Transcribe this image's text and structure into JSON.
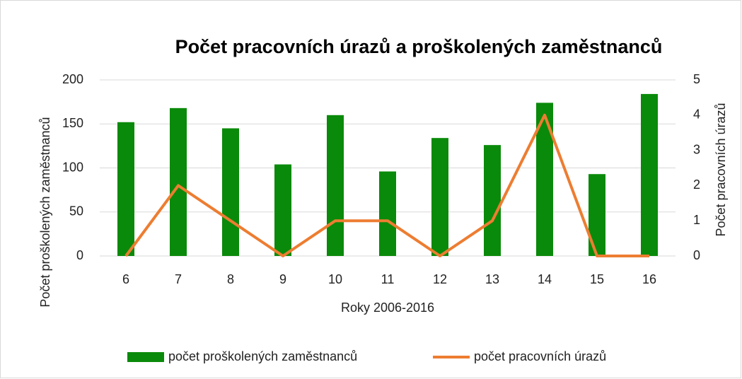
{
  "chart_data": {
    "type": "bar",
    "title": "Počet pracovních úrazů a proškolených zaměstnanců",
    "xlabel": "Roky 2006-2016",
    "ylabel": "Počet proškolených zaměstnanců",
    "y2label": "Počet pracovních úrazů",
    "categories": [
      6,
      7,
      8,
      9,
      10,
      11,
      12,
      13,
      14,
      15,
      16
    ],
    "series": [
      {
        "name": "počet proškolených zaměstnanců",
        "type": "bar",
        "color": "#0a8a0a",
        "values": [
          152,
          168,
          145,
          104,
          160,
          96,
          134,
          126,
          174,
          93,
          184
        ]
      },
      {
        "name": "počet pracovních úrazů",
        "type": "line",
        "axis": "y2",
        "color": "#ed7d31",
        "values": [
          0,
          2,
          1,
          0,
          1,
          1,
          0,
          1,
          4,
          0,
          0
        ]
      }
    ],
    "ylim": [
      0,
      200
    ],
    "yticks": [
      0,
      50,
      100,
      150,
      200
    ],
    "y2lim": [
      0,
      5
    ],
    "y2ticks": [
      0,
      1,
      2,
      3,
      4,
      5
    ],
    "grid": true,
    "legend": "bottom"
  }
}
